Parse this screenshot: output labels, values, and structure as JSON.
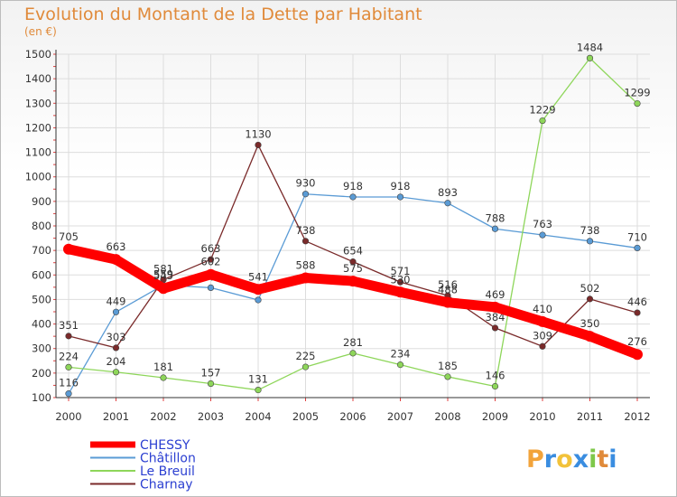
{
  "header": {
    "title": "Evolution du Montant de la Dette par Habitant",
    "subtitle": "(en €)"
  },
  "logo": {
    "letters": [
      "P",
      "r",
      "o",
      "x",
      "i",
      "t",
      "i"
    ],
    "colors": [
      "#f2a33a",
      "#3a8de0",
      "#f2c23a",
      "#3a8de0",
      "#7ec84a",
      "#e08a3a",
      "#3a8de0"
    ]
  },
  "chart_data": {
    "type": "line",
    "x": [
      "2000",
      "2001",
      "2002",
      "2003",
      "2004",
      "2005",
      "2006",
      "2007",
      "2008",
      "2009",
      "2010",
      "2011",
      "2012"
    ],
    "ylim": [
      100,
      1500
    ],
    "yticks": [
      100,
      200,
      300,
      400,
      500,
      600,
      700,
      800,
      900,
      1000,
      1100,
      1200,
      1300,
      1400,
      1500
    ],
    "grid": true,
    "legend_position": "bottom-left",
    "series": [
      {
        "name": "CHESSY",
        "color": "#ff0000",
        "values": [
          705,
          663,
          545,
          602,
          541,
          588,
          575,
          530,
          488,
          469,
          410,
          350,
          276
        ]
      },
      {
        "name": "Châtillon",
        "color": "#5a9bd5",
        "values": [
          116,
          449,
          559,
          548,
          498,
          930,
          918,
          918,
          893,
          788,
          763,
          738,
          710
        ]
      },
      {
        "name": "Le Breuil",
        "color": "#8ed65a",
        "values": [
          224,
          204,
          181,
          157,
          131,
          225,
          281,
          234,
          185,
          146,
          1229,
          1484,
          1299
        ]
      },
      {
        "name": "Charnay",
        "color": "#7a2a2a",
        "values": [
          351,
          303,
          581,
          663,
          1130,
          738,
          654,
          571,
          516,
          384,
          309,
          502,
          446
        ]
      }
    ]
  }
}
